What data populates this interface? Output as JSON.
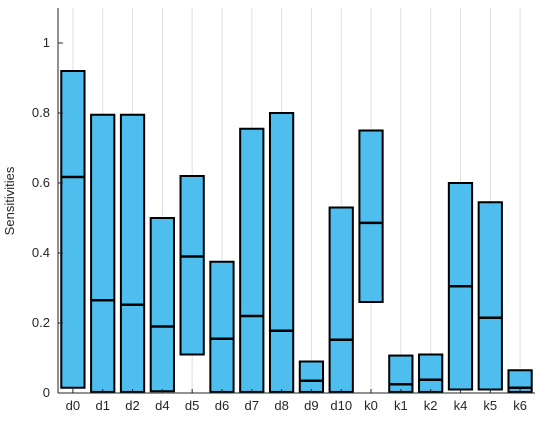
{
  "chart_data": {
    "type": "bar",
    "subtype": "floating-range-with-median",
    "title": "",
    "xlabel": "",
    "ylabel": "Sensitivities",
    "ylim": [
      0,
      1.1
    ],
    "yticks": [
      0,
      0.2,
      0.4,
      0.6,
      0.8,
      1
    ],
    "ytick_labels": [
      "0",
      "0.2",
      "0.4",
      "0.6",
      "0.8",
      "1"
    ],
    "grid": "vertical",
    "colors": {
      "bar_fill": "#4DBEEE",
      "bar_edge": "#000000",
      "median_line": "#000000",
      "grid": "#dedede",
      "axis": "#262626"
    },
    "categories": [
      "d0",
      "d1",
      "d2",
      "d4",
      "d5",
      "d6",
      "d7",
      "d8",
      "d9",
      "d10",
      "k0",
      "k1",
      "k2",
      "k4",
      "k5",
      "k6"
    ],
    "series": [
      {
        "low": [
          0.015,
          0.003,
          0.003,
          0.005,
          0.11,
          0.003,
          0.003,
          0.003,
          0.003,
          0.003,
          0.26,
          0.003,
          0.003,
          0.01,
          0.01,
          0.003
        ],
        "high": [
          0.92,
          0.795,
          0.795,
          0.5,
          0.62,
          0.375,
          0.755,
          0.8,
          0.09,
          0.53,
          0.75,
          0.107,
          0.11,
          0.6,
          0.545,
          0.065
        ],
        "median": [
          0.617,
          0.265,
          0.252,
          0.19,
          0.39,
          0.155,
          0.22,
          0.178,
          0.035,
          0.152,
          0.486,
          0.025,
          0.038,
          0.305,
          0.215,
          0.015
        ]
      }
    ]
  }
}
